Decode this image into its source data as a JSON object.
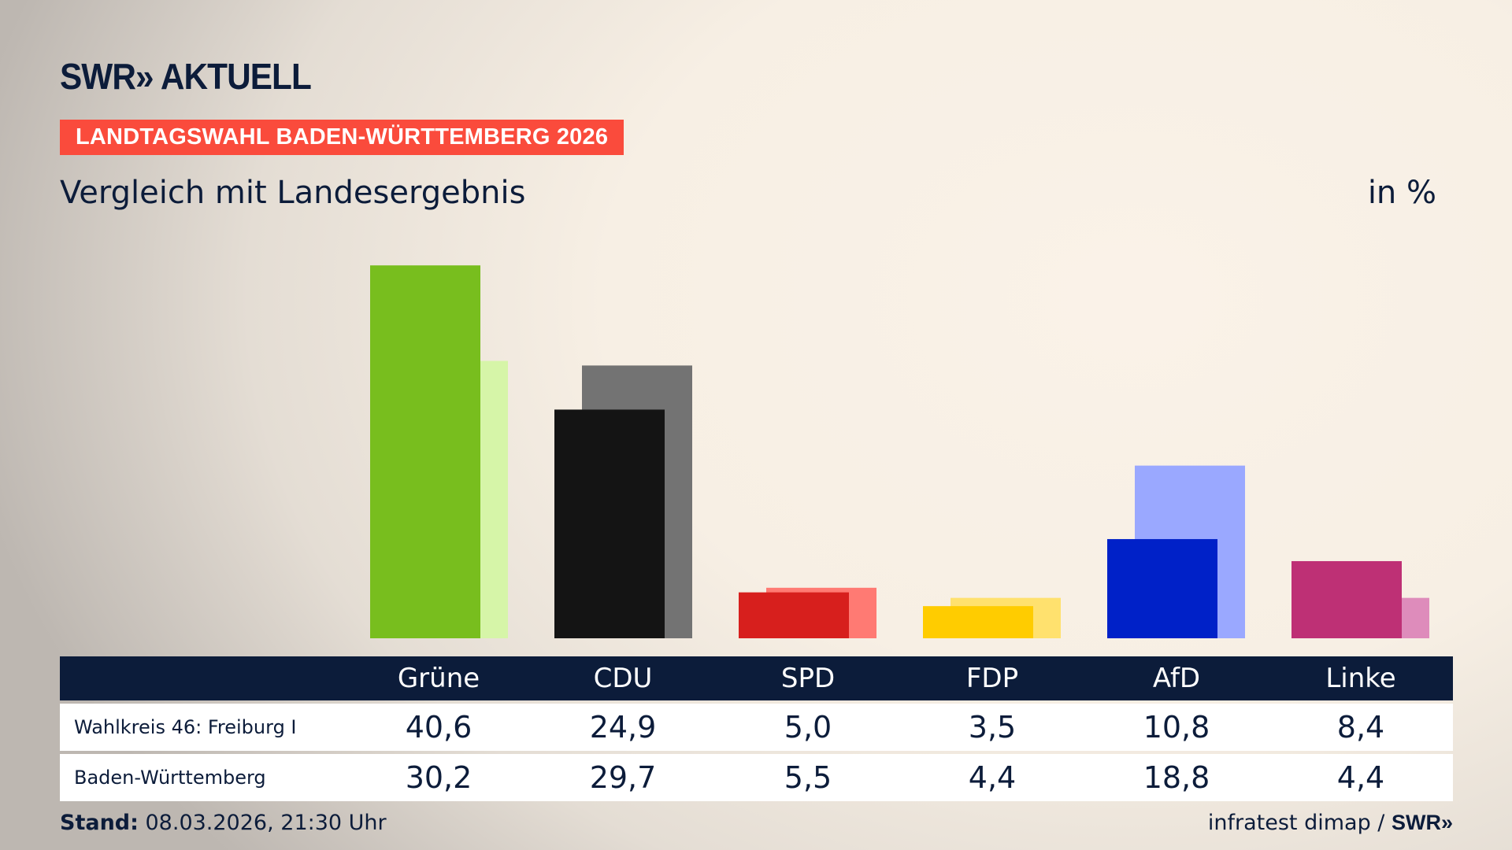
{
  "header": {
    "logo": "SWR» AKTUELL",
    "banner": "LANDTAGSWAHL BADEN-WÜRTTEMBERG 2026",
    "subtitle": "Vergleich mit Landesergebnis",
    "unit": "in %"
  },
  "chart_data": {
    "type": "bar",
    "categories": [
      "Grüne",
      "CDU",
      "SPD",
      "FDP",
      "AfD",
      "Linke"
    ],
    "series": [
      {
        "name": "Wahlkreis 46: Freiburg I",
        "values": [
          40.6,
          24.9,
          5.0,
          3.5,
          10.8,
          8.4
        ],
        "colors": [
          "#78be1e",
          "#141414",
          "#d71f1d",
          "#ffcc00",
          "#0021c8",
          "#be3075"
        ]
      },
      {
        "name": "Baden-Württemberg",
        "values": [
          30.2,
          29.7,
          5.5,
          4.4,
          18.8,
          4.4
        ],
        "colors": [
          "#d6f5a8",
          "#737373",
          "#ff7a73",
          "#ffe16e",
          "#9aa8ff",
          "#de8cbb"
        ]
      }
    ],
    "display": [
      [
        "40,6",
        "24,9",
        "5,0",
        "3,5",
        "10,8",
        "8,4"
      ],
      [
        "30,2",
        "29,7",
        "5,5",
        "4,4",
        "18,8",
        "4,4"
      ]
    ],
    "grid": false
  },
  "footer": {
    "stand_label": "Stand:",
    "stand_value": " 08.03.2026, 21:30 Uhr",
    "source": "infratest dimap / ",
    "source_logo": "SWR»"
  }
}
